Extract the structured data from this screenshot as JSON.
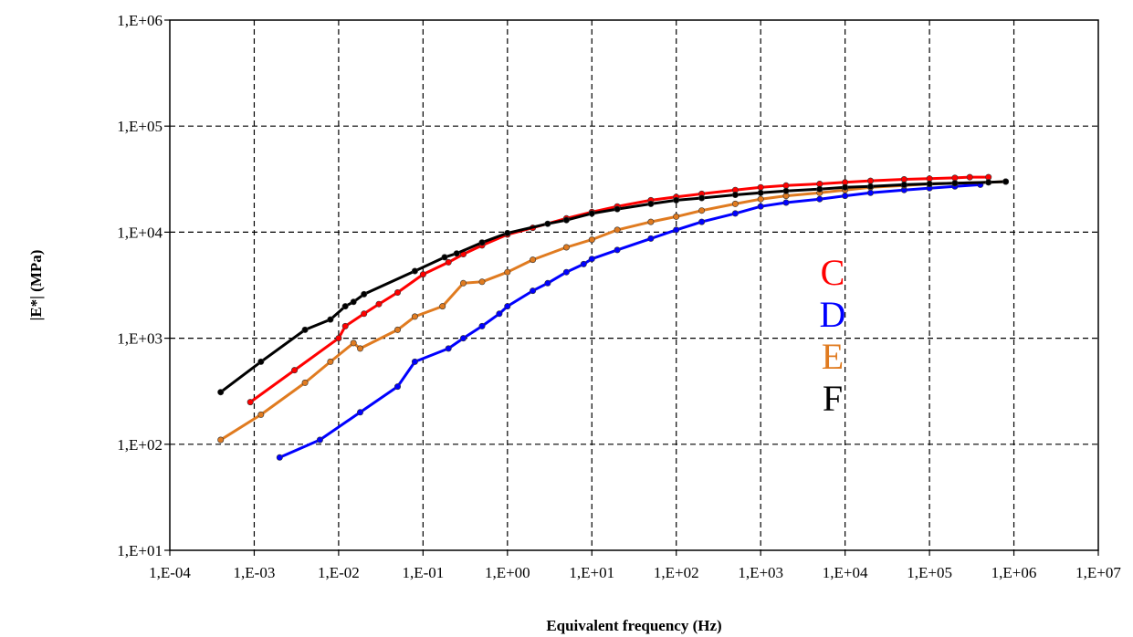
{
  "chart_data": {
    "type": "scatter",
    "xlabel": "Equivalent frequency (Hz)",
    "ylabel": "|E*| (MPa)",
    "x_scale": "log",
    "y_scale": "log",
    "xlim": [
      0.0001,
      10000000
    ],
    "ylim": [
      10,
      1000000
    ],
    "grid": true,
    "legend_position": "right-center",
    "x_tick_labels": [
      "1,E-04",
      "1,E-03",
      "1,E-02",
      "1,E-01",
      "1,E+00",
      "1,E+01",
      "1,E+02",
      "1,E+03",
      "1,E+04",
      "1,E+05",
      "1,E+06",
      "1,E+07"
    ],
    "y_tick_labels": [
      "1,E+01",
      "1,E+02",
      "1,E+03",
      "1,E+04",
      "1,E+05",
      "1,E+06"
    ],
    "series": [
      {
        "name": "C",
        "color": "#ff0000",
        "points": [
          [
            0.0009,
            250
          ],
          [
            0.003,
            500
          ],
          [
            0.01,
            1000
          ],
          [
            0.012,
            1300
          ],
          [
            0.02,
            1700
          ],
          [
            0.03,
            2100
          ],
          [
            0.05,
            2700
          ],
          [
            0.1,
            4000
          ],
          [
            0.2,
            5200
          ],
          [
            0.3,
            6200
          ],
          [
            0.5,
            7500
          ],
          [
            1,
            9500
          ],
          [
            2,
            11000
          ],
          [
            5,
            13500
          ],
          [
            10,
            15500
          ],
          [
            20,
            17500
          ],
          [
            50,
            20000
          ],
          [
            100,
            21500
          ],
          [
            200,
            23000
          ],
          [
            500,
            25000
          ],
          [
            1000,
            26500
          ],
          [
            2000,
            27500
          ],
          [
            5000,
            28500
          ],
          [
            10000,
            29500
          ],
          [
            20000,
            30500
          ],
          [
            50000,
            31500
          ],
          [
            100000,
            32000
          ],
          [
            200000,
            32500
          ],
          [
            300000,
            33000
          ],
          [
            500000,
            33000
          ]
        ]
      },
      {
        "name": "D",
        "color": "#0000ff",
        "points": [
          [
            0.002,
            75
          ],
          [
            0.006,
            110
          ],
          [
            0.018,
            200
          ],
          [
            0.05,
            350
          ],
          [
            0.08,
            600
          ],
          [
            0.2,
            800
          ],
          [
            0.3,
            1000
          ],
          [
            0.5,
            1300
          ],
          [
            0.8,
            1700
          ],
          [
            1,
            2000
          ],
          [
            2,
            2800
          ],
          [
            3,
            3300
          ],
          [
            5,
            4200
          ],
          [
            8,
            5000
          ],
          [
            10,
            5600
          ],
          [
            20,
            6800
          ],
          [
            50,
            8700
          ],
          [
            100,
            10500
          ],
          [
            200,
            12500
          ],
          [
            500,
            15000
          ],
          [
            1000,
            17500
          ],
          [
            2000,
            19000
          ],
          [
            5000,
            20500
          ],
          [
            10000,
            22000
          ],
          [
            20000,
            23500
          ],
          [
            50000,
            25000
          ],
          [
            100000,
            26000
          ],
          [
            200000,
            27000
          ],
          [
            400000,
            28000
          ]
        ]
      },
      {
        "name": "E",
        "color": "#e07b20",
        "points": [
          [
            0.0004,
            110
          ],
          [
            0.0012,
            190
          ],
          [
            0.004,
            380
          ],
          [
            0.008,
            600
          ],
          [
            0.015,
            900
          ],
          [
            0.018,
            800
          ],
          [
            0.05,
            1200
          ],
          [
            0.08,
            1600
          ],
          [
            0.17,
            2000
          ],
          [
            0.3,
            3300
          ],
          [
            0.5,
            3400
          ],
          [
            1,
            4200
          ],
          [
            2,
            5500
          ],
          [
            5,
            7200
          ],
          [
            10,
            8500
          ],
          [
            20,
            10500
          ],
          [
            50,
            12500
          ],
          [
            100,
            14000
          ],
          [
            200,
            16000
          ],
          [
            500,
            18500
          ],
          [
            1000,
            20500
          ],
          [
            2000,
            22000
          ],
          [
            5000,
            23500
          ],
          [
            10000,
            25000
          ],
          [
            20000,
            26500
          ],
          [
            50000,
            27500
          ],
          [
            100000,
            28500
          ],
          [
            200000,
            29000
          ],
          [
            500000,
            29500
          ],
          [
            800000,
            30000
          ]
        ]
      },
      {
        "name": "F",
        "color": "#000000",
        "points": [
          [
            0.0004,
            310
          ],
          [
            0.0012,
            600
          ],
          [
            0.004,
            1200
          ],
          [
            0.008,
            1500
          ],
          [
            0.012,
            2000
          ],
          [
            0.015,
            2200
          ],
          [
            0.02,
            2600
          ],
          [
            0.08,
            4300
          ],
          [
            0.18,
            5800
          ],
          [
            0.25,
            6300
          ],
          [
            0.5,
            8000
          ],
          [
            1,
            9800
          ],
          [
            3,
            12000
          ],
          [
            5,
            13000
          ],
          [
            10,
            15000
          ],
          [
            20,
            16500
          ],
          [
            50,
            18500
          ],
          [
            100,
            20000
          ],
          [
            200,
            21000
          ],
          [
            500,
            22500
          ],
          [
            1000,
            23500
          ],
          [
            2000,
            24500
          ],
          [
            5000,
            25500
          ],
          [
            10000,
            26500
          ],
          [
            20000,
            27000
          ],
          [
            50000,
            28000
          ],
          [
            100000,
            28500
          ],
          [
            200000,
            29000
          ],
          [
            500000,
            29500
          ],
          [
            800000,
            30000
          ]
        ]
      }
    ]
  }
}
